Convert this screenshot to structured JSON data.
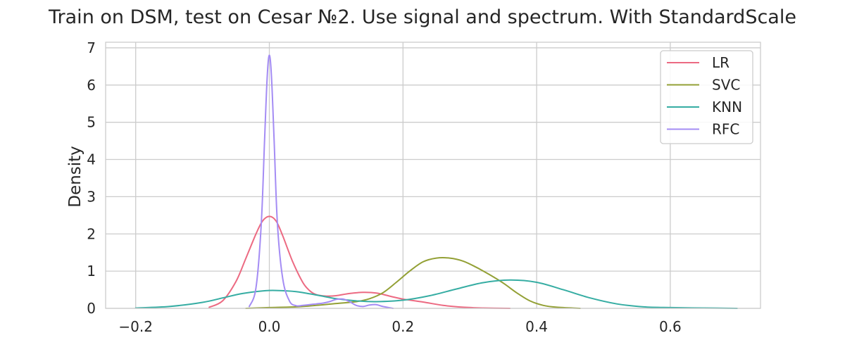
{
  "chart_data": {
    "type": "line",
    "title": "Train on DSM, test on Cesar №2. Use signal and spectrum. With StandardScale",
    "xlabel": "",
    "ylabel": "Density",
    "xlim": [
      -0.245,
      0.735
    ],
    "ylim": [
      0,
      7.15
    ],
    "x_ticks": [
      -0.2,
      0.0,
      0.2,
      0.4,
      0.6
    ],
    "x_tick_labels": [
      "−0.2",
      "0.0",
      "0.2",
      "0.4",
      "0.6"
    ],
    "y_ticks": [
      0,
      1,
      2,
      3,
      4,
      5,
      6,
      7
    ],
    "y_tick_labels": [
      "0",
      "1",
      "2",
      "3",
      "4",
      "5",
      "6",
      "7"
    ],
    "grid": true,
    "legend_position": "top-right",
    "series": [
      {
        "name": "LR",
        "color": "#ec6a82",
        "x": [
          -0.09,
          -0.07,
          -0.05,
          -0.035,
          -0.02,
          -0.01,
          0.0,
          0.01,
          0.02,
          0.035,
          0.05,
          0.06,
          0.07,
          0.085,
          0.1,
          0.12,
          0.14,
          0.16,
          0.18,
          0.2,
          0.23,
          0.26,
          0.29,
          0.32,
          0.36
        ],
        "y": [
          0.03,
          0.2,
          0.72,
          1.35,
          2.0,
          2.35,
          2.47,
          2.35,
          1.95,
          1.25,
          0.7,
          0.48,
          0.37,
          0.33,
          0.34,
          0.4,
          0.43,
          0.41,
          0.33,
          0.25,
          0.17,
          0.08,
          0.03,
          0.01,
          0.0
        ]
      },
      {
        "name": "SVC",
        "color": "#93a035",
        "x": [
          -0.035,
          0.0,
          0.04,
          0.07,
          0.1,
          0.13,
          0.15,
          0.17,
          0.19,
          0.21,
          0.23,
          0.25,
          0.27,
          0.29,
          0.31,
          0.33,
          0.35,
          0.37,
          0.39,
          0.41,
          0.43,
          0.465
        ],
        "y": [
          0.0,
          0.02,
          0.04,
          0.08,
          0.13,
          0.18,
          0.26,
          0.42,
          0.7,
          1.0,
          1.25,
          1.35,
          1.35,
          1.27,
          1.1,
          0.9,
          0.68,
          0.42,
          0.2,
          0.08,
          0.03,
          0.0
        ]
      },
      {
        "name": "KNN",
        "color": "#36ada3",
        "x": [
          -0.2,
          -0.15,
          -0.1,
          -0.07,
          -0.04,
          -0.01,
          0.01,
          0.04,
          0.07,
          0.1,
          0.13,
          0.16,
          0.2,
          0.24,
          0.28,
          0.32,
          0.36,
          0.4,
          0.44,
          0.48,
          0.52,
          0.56,
          0.6,
          0.65,
          0.7
        ],
        "y": [
          0.01,
          0.05,
          0.16,
          0.28,
          0.4,
          0.47,
          0.48,
          0.45,
          0.36,
          0.26,
          0.2,
          0.18,
          0.22,
          0.34,
          0.52,
          0.69,
          0.76,
          0.7,
          0.5,
          0.28,
          0.12,
          0.04,
          0.02,
          0.01,
          0.0
        ]
      },
      {
        "name": "RFC",
        "color": "#a48cf4",
        "x": [
          -0.03,
          -0.02,
          -0.012,
          -0.007,
          -0.003,
          0.0,
          0.003,
          0.007,
          0.012,
          0.02,
          0.03,
          0.04,
          0.05,
          0.06,
          0.07,
          0.08,
          0.09,
          0.1,
          0.11,
          0.12,
          0.13,
          0.14,
          0.15,
          0.16,
          0.17,
          0.185
        ],
        "y": [
          0.05,
          0.55,
          2.3,
          4.6,
          6.3,
          6.8,
          6.3,
          4.6,
          2.3,
          0.8,
          0.2,
          0.07,
          0.08,
          0.1,
          0.12,
          0.14,
          0.18,
          0.24,
          0.25,
          0.18,
          0.08,
          0.05,
          0.09,
          0.1,
          0.05,
          0.0
        ]
      }
    ]
  }
}
